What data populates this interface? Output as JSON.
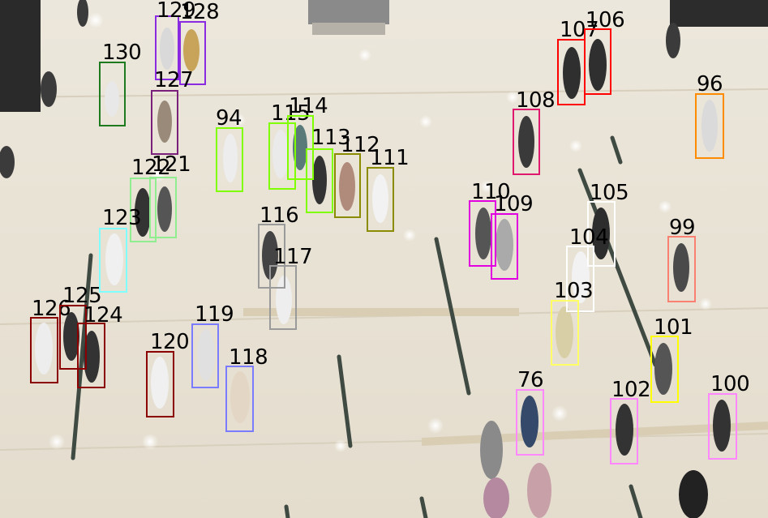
{
  "tracks": [
    {
      "id": "129",
      "color": "#8a2be2"
    },
    {
      "id": "128",
      "color": "#8a2be2"
    },
    {
      "id": "130",
      "color": "#1e7a1e"
    },
    {
      "id": "127",
      "color": "#7a1f7a"
    },
    {
      "id": "94",
      "color": "#7fff00"
    },
    {
      "id": "115",
      "color": "#7fff00"
    },
    {
      "id": "114",
      "color": "#7fff00"
    },
    {
      "id": "113",
      "color": "#7fff00"
    },
    {
      "id": "112",
      "color": "#8b8b00"
    },
    {
      "id": "111",
      "color": "#8b8b00"
    },
    {
      "id": "122",
      "color": "#90ee90"
    },
    {
      "id": "121",
      "color": "#90ee90"
    },
    {
      "id": "123",
      "color": "#7fffff"
    },
    {
      "id": "116",
      "color": "#9a9a9a"
    },
    {
      "id": "117",
      "color": "#9a9a9a"
    },
    {
      "id": "126",
      "color": "#8b0000"
    },
    {
      "id": "125",
      "color": "#8b0000"
    },
    {
      "id": "124",
      "color": "#8b0000"
    },
    {
      "id": "119",
      "color": "#7b7bff"
    },
    {
      "id": "120",
      "color": "#8b0000"
    },
    {
      "id": "118",
      "color": "#7b7bff"
    },
    {
      "id": "107",
      "color": "#ff0000"
    },
    {
      "id": "106",
      "color": "#ff0000"
    },
    {
      "id": "108",
      "color": "#e0196e"
    },
    {
      "id": "96",
      "color": "#ff8c00"
    },
    {
      "id": "110",
      "color": "#e000e0"
    },
    {
      "id": "109",
      "color": "#e000e0"
    },
    {
      "id": "105",
      "color": "#ffffff"
    },
    {
      "id": "104",
      "color": "#ffffff"
    },
    {
      "id": "99",
      "color": "#fa8072"
    },
    {
      "id": "103",
      "color": "#ffff66"
    },
    {
      "id": "101",
      "color": "#ffff00"
    },
    {
      "id": "76",
      "color": "#ff88ff"
    },
    {
      "id": "102",
      "color": "#ff88ff"
    },
    {
      "id": "100",
      "color": "#ff88ff"
    }
  ]
}
